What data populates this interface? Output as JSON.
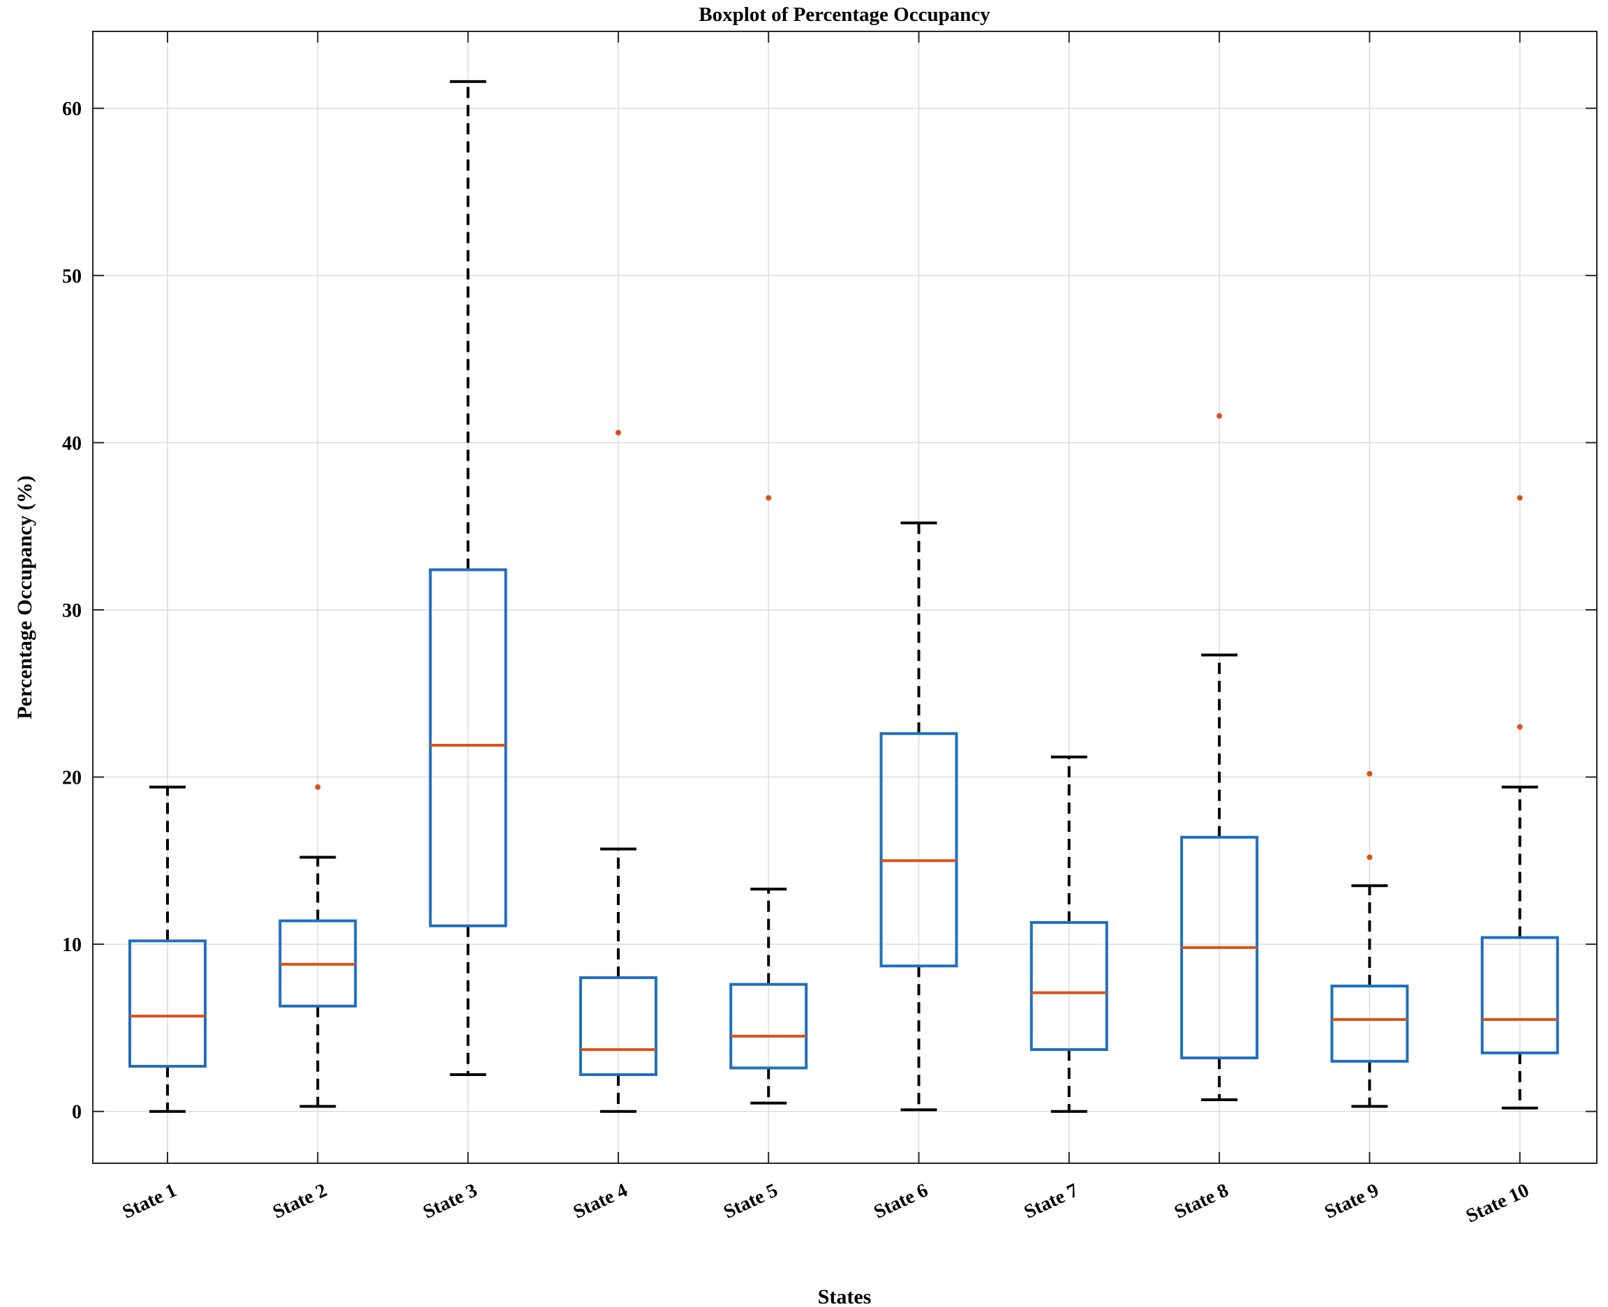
{
  "chart_data": {
    "type": "boxplot",
    "title": "Boxplot of Percentage Occupancy",
    "xlabel": "States",
    "ylabel": "Percentage Occupancy (%)",
    "ylim": [
      -3.1,
      64.6
    ],
    "yticks": [
      0,
      10,
      20,
      30,
      40,
      50,
      60
    ],
    "grid": true,
    "categories": [
      "State 1",
      "State 2",
      "State 3",
      "State 4",
      "State 5",
      "State 6",
      "State 7",
      "State 8",
      "State 9",
      "State 10"
    ],
    "boxes": [
      {
        "whisker_low": 0.0,
        "q1": 2.7,
        "median": 5.7,
        "q3": 10.2,
        "whisker_high": 19.4,
        "outliers": []
      },
      {
        "whisker_low": 0.3,
        "q1": 6.3,
        "median": 8.8,
        "q3": 11.4,
        "whisker_high": 15.2,
        "outliers": [
          19.4
        ]
      },
      {
        "whisker_low": 2.2,
        "q1": 11.1,
        "median": 21.9,
        "q3": 32.4,
        "whisker_high": 61.6,
        "outliers": []
      },
      {
        "whisker_low": 0.0,
        "q1": 2.2,
        "median": 3.7,
        "q3": 8.0,
        "whisker_high": 15.7,
        "outliers": [
          40.6
        ]
      },
      {
        "whisker_low": 0.5,
        "q1": 2.6,
        "median": 4.5,
        "q3": 7.6,
        "whisker_high": 13.3,
        "outliers": [
          36.7
        ]
      },
      {
        "whisker_low": 0.1,
        "q1": 8.7,
        "median": 15.0,
        "q3": 22.6,
        "whisker_high": 35.2,
        "outliers": []
      },
      {
        "whisker_low": 0.0,
        "q1": 3.7,
        "median": 7.1,
        "q3": 11.3,
        "whisker_high": 21.2,
        "outliers": []
      },
      {
        "whisker_low": 0.7,
        "q1": 3.2,
        "median": 9.8,
        "q3": 16.4,
        "whisker_high": 27.3,
        "outliers": [
          41.6
        ]
      },
      {
        "whisker_low": 0.3,
        "q1": 3.0,
        "median": 5.5,
        "q3": 7.5,
        "whisker_high": 13.5,
        "outliers": [
          15.2,
          20.2
        ]
      },
      {
        "whisker_low": 0.2,
        "q1": 3.5,
        "median": 5.5,
        "q3": 10.4,
        "whisker_high": 19.4,
        "outliers": [
          23.0,
          36.7
        ]
      }
    ],
    "colors": {
      "box": "#1f6fbf",
      "median": "#d95319",
      "whisker": "#000000",
      "outlier": "#d95319",
      "grid": "#dcdcdc"
    }
  }
}
